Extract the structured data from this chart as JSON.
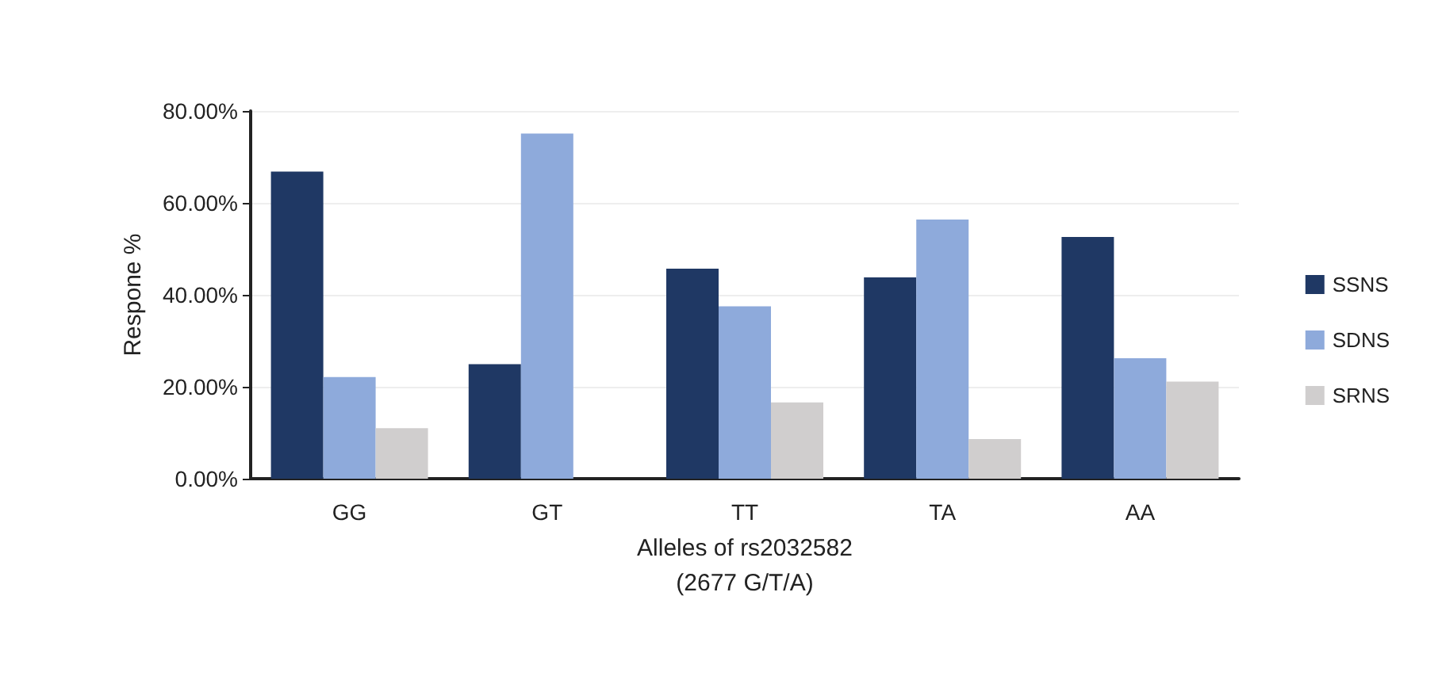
{
  "chart_data": {
    "type": "bar",
    "xlabel": "Alleles of rs2032582\n(2677 G/T/A)",
    "ylabel": "Respone %",
    "categories": [
      "GG",
      "GT",
      "TT",
      "TA",
      "AA"
    ],
    "series": [
      {
        "name": "SSNS",
        "color": "#1f3864",
        "values": [
          66.8,
          24.9,
          45.7,
          43.8,
          52.6
        ]
      },
      {
        "name": "SDNS",
        "color": "#8eaadb",
        "values": [
          22.1,
          75.1,
          37.5,
          56.4,
          26.2
        ]
      },
      {
        "name": "SRNS",
        "color": "#d0cece",
        "values": [
          11.0,
          0,
          16.6,
          8.6,
          21.1
        ]
      }
    ],
    "ylim": [
      0,
      80
    ],
    "yticks": [
      {
        "value": 0,
        "label": "0.00%"
      },
      {
        "value": 20,
        "label": "20.00%"
      },
      {
        "value": 40,
        "label": "40.00%"
      },
      {
        "value": 60,
        "label": "60.00%"
      },
      {
        "value": 80,
        "label": "80.00%"
      }
    ],
    "grid": "y",
    "legend": "right"
  }
}
